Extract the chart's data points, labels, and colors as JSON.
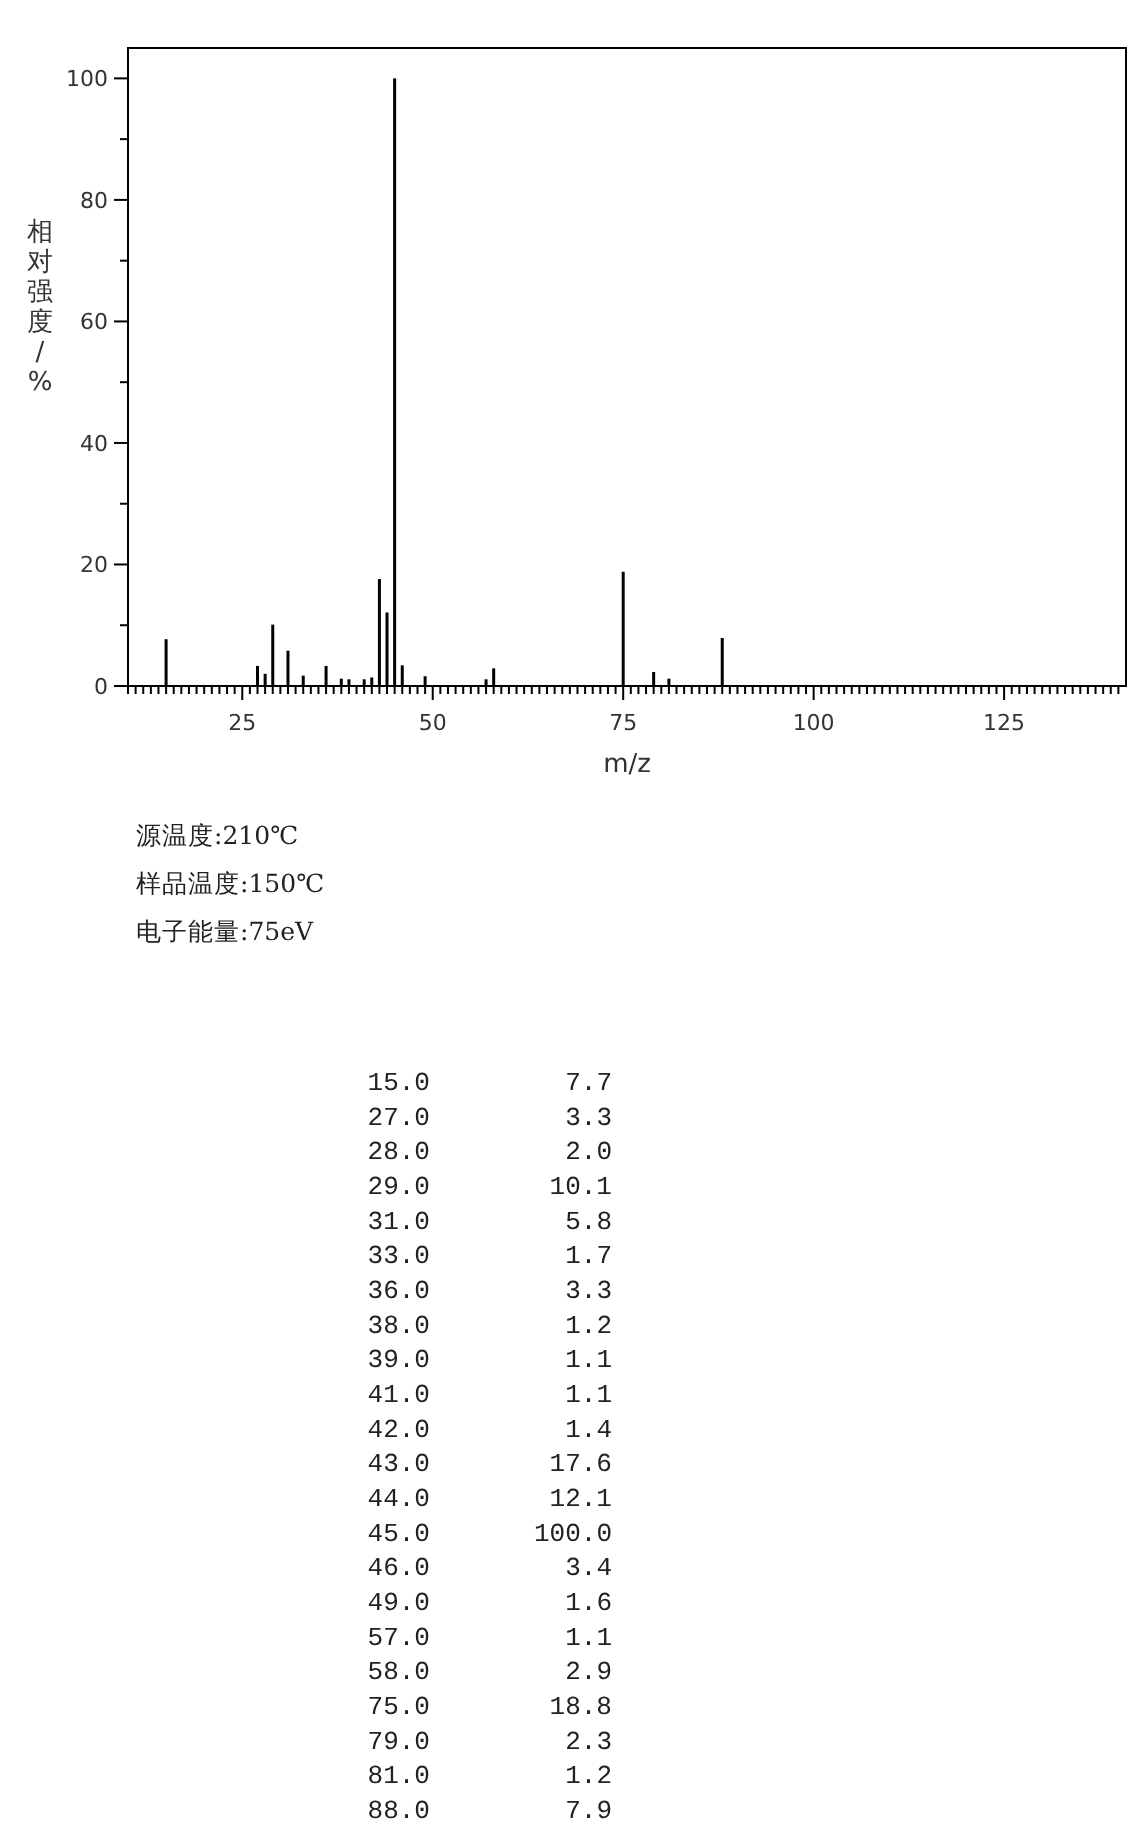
{
  "chart_data": {
    "type": "bar",
    "xlabel": "m/z",
    "ylabel": "相对强度/%",
    "x": [
      15,
      27,
      28,
      29,
      31,
      33,
      36,
      38,
      39,
      41,
      42,
      43,
      44,
      45,
      46,
      49,
      57,
      58,
      75,
      79,
      81,
      88
    ],
    "values": [
      7.7,
      3.3,
      2.0,
      10.1,
      5.8,
      1.7,
      3.3,
      1.2,
      1.1,
      1.1,
      1.4,
      17.6,
      12.1,
      100.0,
      3.4,
      1.6,
      1.1,
      2.9,
      18.8,
      2.3,
      1.2,
      7.9
    ],
    "color": "#000000",
    "xlim": [
      10,
      141
    ],
    "ylim": [
      0,
      105
    ],
    "xticks": [
      25,
      50,
      75,
      100,
      125,
      {
        "value": 10,
        "label": null
      },
      {
        "value": 11,
        "label": null
      },
      {
        "value": 12,
        "label": null
      },
      {
        "value": 13,
        "label": null
      },
      {
        "value": 14,
        "label": null
      },
      {
        "value": 15,
        "label": null
      },
      {
        "value": 16,
        "label": null
      },
      {
        "value": 17,
        "label": null
      },
      {
        "value": 18,
        "label": null
      },
      {
        "value": 19,
        "label": null
      },
      {
        "value": 20,
        "label": null
      },
      {
        "value": 21,
        "label": null
      },
      {
        "value": 22,
        "label": null
      },
      {
        "value": 23,
        "label": null
      },
      {
        "value": 24,
        "label": null
      },
      {
        "value": 26,
        "label": null
      },
      {
        "value": 27,
        "label": null
      },
      {
        "value": 28,
        "label": null
      },
      {
        "value": 29,
        "label": null
      },
      {
        "value": 30,
        "label": null
      },
      {
        "value": 31,
        "label": null
      },
      {
        "value": 32,
        "label": null
      },
      {
        "value": 33,
        "label": null
      },
      {
        "value": 34,
        "label": null
      },
      {
        "value": 35,
        "label": null
      },
      {
        "value": 36,
        "label": null
      },
      {
        "value": 37,
        "label": null
      },
      {
        "value": 38,
        "label": null
      },
      {
        "value": 39,
        "label": null
      },
      {
        "value": 40,
        "label": null
      },
      {
        "value": 41,
        "label": null
      },
      {
        "value": 42,
        "label": null
      },
      {
        "value": 43,
        "label": null
      },
      {
        "value": 44,
        "label": null
      },
      {
        "value": 45,
        "label": null
      },
      {
        "value": 46,
        "label": null
      },
      {
        "value": 47,
        "label": null
      },
      {
        "value": 48,
        "label": null
      },
      {
        "value": 49,
        "label": null
      },
      {
        "value": 51,
        "label": null
      },
      {
        "value": 52,
        "label": null
      },
      {
        "value": 53,
        "label": null
      },
      {
        "value": 54,
        "label": null
      },
      {
        "value": 55,
        "label": null
      },
      {
        "value": 56,
        "label": null
      },
      {
        "value": 57,
        "label": null
      },
      {
        "value": 58,
        "label": null
      },
      {
        "value": 59,
        "label": null
      },
      {
        "value": 60,
        "label": null
      },
      {
        "value": 61,
        "label": null
      },
      {
        "value": 62,
        "label": null
      },
      {
        "value": 63,
        "label": null
      },
      {
        "value": 64,
        "label": null
      },
      {
        "value": 65,
        "label": null
      },
      {
        "value": 66,
        "label": null
      },
      {
        "value": 67,
        "label": null
      },
      {
        "value": 68,
        "label": null
      },
      {
        "value": 69,
        "label": null
      },
      {
        "value": 70,
        "label": null
      },
      {
        "value": 71,
        "label": null
      },
      {
        "value": 72,
        "label": null
      },
      {
        "value": 73,
        "label": null
      },
      {
        "value": 74,
        "label": null
      },
      {
        "value": 76,
        "label": null
      },
      {
        "value": 77,
        "label": null
      },
      {
        "value": 78,
        "label": null
      },
      {
        "value": 79,
        "label": null
      },
      {
        "value": 80,
        "label": null
      },
      {
        "value": 81,
        "label": null
      },
      {
        "value": 82,
        "label": null
      },
      {
        "value": 83,
        "label": null
      },
      {
        "value": 84,
        "label": null
      },
      {
        "value": 85,
        "label": null
      },
      {
        "value": 86,
        "label": null
      },
      {
        "value": 87,
        "label": null
      },
      {
        "value": 88,
        "label": null
      },
      {
        "value": 89,
        "label": null
      },
      {
        "value": 90,
        "label": null
      },
      {
        "value": 91,
        "label": null
      },
      {
        "value": 92,
        "label": null
      },
      {
        "value": 93,
        "label": null
      },
      {
        "value": 94,
        "label": null
      },
      {
        "value": 95,
        "label": null
      },
      {
        "value": 96,
        "label": null
      },
      {
        "value": 97,
        "label": null
      },
      {
        "value": 98,
        "label": null
      },
      {
        "value": 99,
        "label": null
      },
      {
        "value": 101,
        "label": null
      },
      {
        "value": 102,
        "label": null
      },
      {
        "value": 103,
        "label": null
      },
      {
        "value": 104,
        "label": null
      },
      {
        "value": 105,
        "label": null
      },
      {
        "value": 106,
        "label": null
      },
      {
        "value": 107,
        "label": null
      },
      {
        "value": 108,
        "label": null
      },
      {
        "value": 109,
        "label": null
      },
      {
        "value": 110,
        "label": null
      },
      {
        "value": 111,
        "label": null
      },
      {
        "value": 112,
        "label": null
      },
      {
        "value": 113,
        "label": null
      },
      {
        "value": 114,
        "label": null
      },
      {
        "value": 115,
        "label": null
      },
      {
        "value": 116,
        "label": null
      },
      {
        "value": 117,
        "label": null
      },
      {
        "value": 118,
        "label": null
      },
      {
        "value": 119,
        "label": null
      },
      {
        "value": 120,
        "label": null
      },
      {
        "value": 121,
        "label": null
      },
      {
        "value": 122,
        "label": null
      },
      {
        "value": 123,
        "label": null
      },
      {
        "value": 124,
        "label": null
      },
      {
        "value": 126,
        "label": null
      },
      {
        "value": 127,
        "label": null
      },
      {
        "value": 128,
        "label": null
      },
      {
        "value": 129,
        "label": null
      },
      {
        "value": 130,
        "label": null
      },
      {
        "value": 131,
        "label": null
      },
      {
        "value": 132,
        "label": null
      },
      {
        "value": 133,
        "label": null
      },
      {
        "value": 134,
        "label": null
      },
      {
        "value": 135,
        "label": null
      },
      {
        "value": 136,
        "label": null
      },
      {
        "value": 137,
        "label": null
      },
      {
        "value": 138,
        "label": null
      },
      {
        "value": 139,
        "label": null
      },
      {
        "value": 140,
        "label": null
      }
    ],
    "yticks": [
      0,
      20,
      40,
      60,
      80,
      100,
      {
        "value": 10,
        "label": null
      },
      {
        "value": 30,
        "label": null
      },
      {
        "value": 50,
        "label": null
      },
      {
        "value": 70,
        "label": null
      },
      {
        "value": 90,
        "label": null
      }
    ],
    "annotations": [
      "源温度:210℃",
      "样品温度:150℃",
      "电子能量:75eV",
      "15.0",
      "7.7",
      "27.0",
      "3.3",
      "28.0",
      "2.0",
      "29.0",
      "10.1",
      "31.0",
      "5.8",
      "33.0",
      "1.7",
      "36.0",
      "3.3",
      "38.0",
      "1.2",
      "39.0",
      "1.1",
      "41.0",
      "1.1",
      "42.0",
      "1.4",
      "43.0",
      "17.6",
      "44.0",
      "12.1",
      "45.0",
      "100.0",
      "46.0",
      "3.4",
      "49.0",
      "1.6",
      "57.0",
      "1.1",
      "58.0",
      "2.9",
      "75.0",
      "18.8",
      "79.0",
      "2.3",
      "81.0",
      "1.2",
      "88.0",
      "7.9"
    ]
  }
}
